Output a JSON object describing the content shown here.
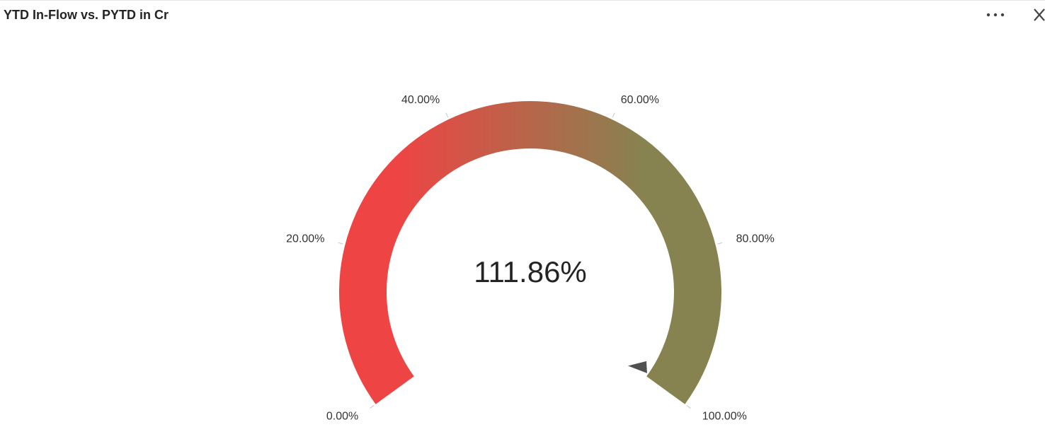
{
  "chart_data": {
    "type": "gauge",
    "title": "YTD In-Flow vs. PYTD in Cr",
    "value": 111.86,
    "value_label": "111.86%",
    "range": [
      0,
      100
    ],
    "ticks": [
      {
        "value": 0,
        "label": "0.00%"
      },
      {
        "value": 20,
        "label": "20.00%"
      },
      {
        "value": 40,
        "label": "40.00%"
      },
      {
        "value": 60,
        "label": "60.00%"
      },
      {
        "value": 80,
        "label": "80.00%"
      },
      {
        "value": 100,
        "label": "100.00%"
      }
    ],
    "colors": [
      "#ef4444",
      "#868350"
    ]
  }
}
